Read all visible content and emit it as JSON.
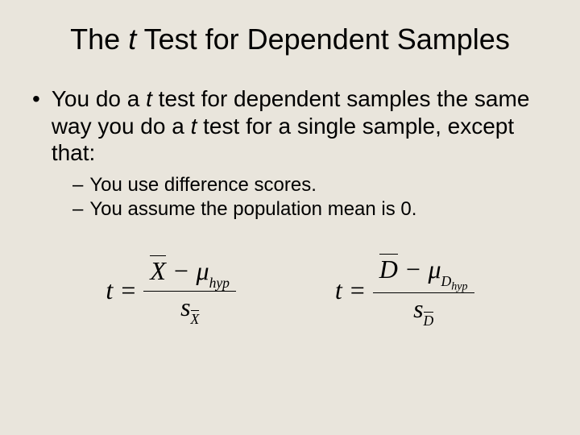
{
  "background_color": "#e9e5dc",
  "text_color": "#000000",
  "title": {
    "prefix": "The ",
    "italic": "t",
    "suffix": " Test for Dependent Samples",
    "fontsize": 36
  },
  "main_bullet": {
    "marker": "•",
    "seg1": "You do a ",
    "italic1": "t",
    "seg2": " test for dependent samples the same way you do a ",
    "italic2": "t",
    "seg3": " test for a single sample, except that:",
    "fontsize": 28
  },
  "sub_bullets": {
    "marker": "–",
    "items": [
      "You use difference scores.",
      "You assume the population mean is 0."
    ],
    "fontsize": 24
  },
  "formula1": {
    "lhs": "t",
    "eq": "=",
    "num_X": "X",
    "minus": " − ",
    "mu": "μ",
    "mu_sub": "hyp",
    "den_s": "s",
    "den_sub": "X"
  },
  "formula2": {
    "lhs": "t",
    "eq": "=",
    "num_D": "D",
    "minus": " − ",
    "mu": "μ",
    "mu_sub_main": "D",
    "mu_sub_sub": "hyp",
    "den_s": "s",
    "den_sub": "D"
  },
  "formula_style": {
    "font_family": "Times New Roman",
    "fontsize": 32,
    "bar_color": "#000000"
  }
}
